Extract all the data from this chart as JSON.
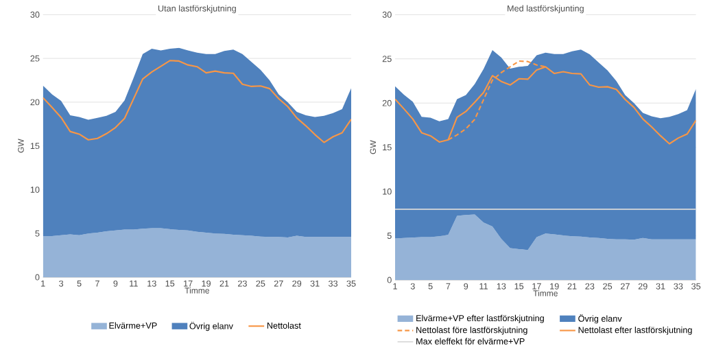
{
  "chart_data": [
    {
      "type": "area",
      "title": "Utan lastförskjutning",
      "xlabel": "Timme",
      "ylabel": "GW",
      "stacked": true,
      "grid": "y",
      "legend": "bottom",
      "categories": [
        "1",
        null,
        "3",
        null,
        "5",
        null,
        "7",
        null,
        "9",
        null,
        "11",
        null,
        "13",
        null,
        "15",
        null,
        "17",
        null,
        "19",
        null,
        "21",
        null,
        "23",
        null,
        "25",
        null,
        "27",
        null,
        "29",
        null,
        "31",
        null,
        "33",
        null,
        "35"
      ],
      "ylim": [
        0,
        30
      ],
      "yticks": [
        0,
        5,
        10,
        15,
        20,
        25,
        30
      ],
      "series": [
        {
          "name": "Elvärme+VP",
          "color": "#95b3d7",
          "values": [
            4.7,
            4.7,
            4.8,
            4.9,
            4.8,
            5.0,
            5.1,
            5.25,
            5.35,
            5.45,
            5.45,
            5.55,
            5.6,
            5.6,
            5.5,
            5.4,
            5.35,
            5.2,
            5.1,
            5.0,
            4.95,
            4.85,
            4.8,
            4.75,
            4.65,
            4.6,
            4.6,
            4.55,
            4.75,
            4.6,
            4.6,
            4.6,
            4.6,
            4.6,
            4.6
          ]
        },
        {
          "name": "Övrig elanv",
          "color": "#4f81bd",
          "values": [
            17.2,
            16.2,
            15.35,
            13.6,
            13.5,
            13.0,
            13.1,
            13.2,
            13.55,
            14.75,
            17.35,
            19.95,
            20.5,
            20.3,
            20.6,
            20.8,
            20.55,
            20.45,
            20.4,
            20.5,
            20.9,
            21.15,
            20.7,
            19.85,
            19.05,
            17.9,
            16.3,
            15.45,
            14.15,
            13.9,
            13.7,
            13.85,
            14.15,
            14.6,
            17.0
          ]
        },
        {
          "name": "Nettolast",
          "type": "line",
          "color": "#f79646",
          "values": [
            20.5,
            19.4,
            18.25,
            16.65,
            16.35,
            15.7,
            15.85,
            16.4,
            17.1,
            18.15,
            20.4,
            22.65,
            23.45,
            24.1,
            24.75,
            24.7,
            24.25,
            24.05,
            23.35,
            23.55,
            23.35,
            23.3,
            22.05,
            21.8,
            21.85,
            21.55,
            20.4,
            19.5,
            18.2,
            17.3,
            16.3,
            15.4,
            16.05,
            16.5,
            18.05
          ]
        }
      ]
    },
    {
      "type": "area",
      "title": "Med lastförskjunting",
      "xlabel": "Timme",
      "ylabel": "GW",
      "stacked": true,
      "grid": "y",
      "legend": "bottom",
      "categories": [
        "1",
        null,
        "3",
        null,
        "5",
        null,
        "7",
        null,
        "9",
        null,
        "11",
        null,
        "13",
        null,
        "15",
        null,
        "17",
        null,
        "19",
        null,
        "21",
        null,
        "23",
        null,
        "25",
        null,
        "27",
        null,
        "29",
        null,
        "31",
        null,
        "33",
        null,
        "35"
      ],
      "ylim": [
        0,
        30
      ],
      "yticks": [
        0,
        5,
        10,
        15,
        20,
        25,
        30
      ],
      "series": [
        {
          "name": "Elvärme+VP efter lastförskjutning",
          "color": "#95b3d7",
          "values": [
            4.7,
            4.75,
            4.8,
            4.85,
            4.85,
            4.95,
            5.1,
            7.25,
            7.35,
            7.4,
            6.5,
            6.05,
            4.65,
            3.6,
            3.5,
            3.4,
            4.85,
            5.25,
            5.15,
            5.05,
            4.95,
            4.9,
            4.8,
            4.75,
            4.65,
            4.6,
            4.6,
            4.55,
            4.75,
            4.6,
            4.6,
            4.6,
            4.6,
            4.6,
            4.6
          ]
        },
        {
          "name": "Övrig elanv",
          "color": "#4f81bd",
          "values": [
            17.2,
            16.2,
            15.35,
            13.6,
            13.5,
            13.0,
            13.1,
            13.2,
            13.55,
            14.75,
            17.35,
            19.95,
            20.5,
            20.3,
            20.6,
            20.8,
            20.55,
            20.45,
            20.4,
            20.5,
            20.9,
            21.15,
            20.7,
            19.85,
            19.05,
            17.9,
            16.3,
            15.45,
            14.15,
            13.9,
            13.7,
            13.85,
            14.15,
            14.6,
            17.0
          ]
        },
        {
          "name": "Nettolast före lastförskjutning",
          "type": "line",
          "line_style": "dashed",
          "color": "#f79646",
          "values": [
            null,
            null,
            null,
            null,
            null,
            null,
            15.85,
            16.4,
            17.1,
            18.15,
            20.4,
            22.6,
            23.45,
            24.1,
            24.75,
            24.7,
            24.3,
            24.1,
            null,
            null,
            null,
            null,
            null,
            null,
            null,
            null,
            null,
            null,
            null,
            null,
            null,
            null,
            null,
            null,
            null
          ]
        },
        {
          "name": "Nettolast efter lastförskjutning",
          "type": "line",
          "color": "#f79646",
          "values": [
            20.45,
            19.35,
            18.2,
            16.65,
            16.3,
            15.6,
            15.85,
            18.4,
            19.05,
            20.1,
            21.2,
            23.1,
            22.45,
            22.05,
            22.75,
            22.7,
            23.75,
            24.1,
            23.35,
            23.55,
            23.35,
            23.3,
            22.05,
            21.8,
            21.85,
            21.55,
            20.4,
            19.5,
            18.2,
            17.3,
            16.3,
            15.4,
            16.05,
            16.5,
            18.05
          ]
        }
      ],
      "ref_lines": [
        {
          "axis": "y",
          "value": 8,
          "label": "Max eleffekt för elvärme+VP",
          "color": "#d9d9d9"
        }
      ]
    }
  ]
}
